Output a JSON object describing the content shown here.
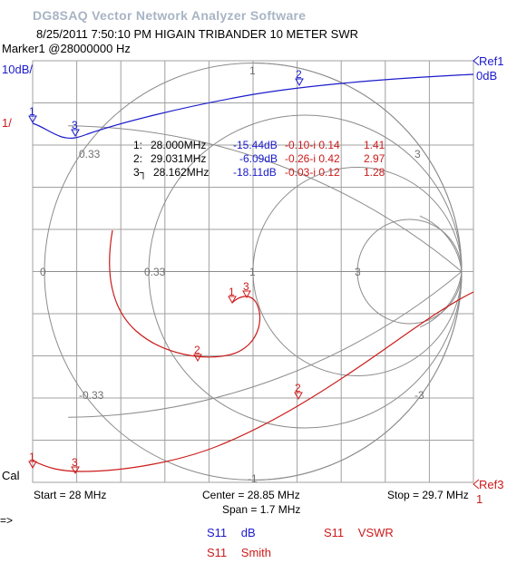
{
  "app_title": "DG8SAQ Vector Network Analyzer Software",
  "subtitle": "8/25/2011   7:50:10 PM   HIGAIN TRIBANDER 10 METER SWR",
  "marker_header": "Marker1 @28000000 Hz",
  "left_axis": {
    "top_label": "10dB/",
    "mid_label": "1/",
    "bottom_label": "Cal"
  },
  "right_axis": {
    "ref1": "Ref1",
    "ref1_value": "0dB",
    "ref3": "Ref3",
    "ref3_value": "1"
  },
  "footer": {
    "start": "Start = 28 MHz",
    "center": "Center = 28.85 MHz",
    "span": "Span = 1.7 MHz",
    "stop": "Stop = 29.7 MHz",
    "prompt": "=>"
  },
  "marker_table": [
    {
      "id": "1:",
      "freq": "28.000MHz",
      "db": "-15.44dB",
      "impedance": "-0.10-i 0.14",
      "vswr": "1.41"
    },
    {
      "id": "2:",
      "freq": "29.031MHz",
      "db": "-6.09dB",
      "impedance": "-0.26-i 0.42",
      "vswr": "2.97"
    },
    {
      "id": "3┐",
      "freq": "28.162MHz",
      "db": "-18.11dB",
      "impedance": "-0.03-i 0.12",
      "vswr": "1.28"
    }
  ],
  "smith_labels": {
    "r0": "0",
    "r033": "0.33",
    "r1": "1",
    "r3": "3",
    "x_top_1": "1",
    "x_top_033": "0.33",
    "x_top_3": "3",
    "x_bot_1": "-1",
    "x_bot_033": "-0.33",
    "x_bot_3": "-3"
  },
  "trace_markers": {
    "m1": "1",
    "m2": "2",
    "m3": "3"
  },
  "legend": [
    {
      "trace": "S11",
      "format": "dB",
      "color": "#1a1acc"
    },
    {
      "trace": "S11",
      "format": "VSWR",
      "color": "#cc1a1a"
    },
    {
      "trace": "S11",
      "format": "Smith",
      "color": "#cc1a1a"
    }
  ],
  "colors": {
    "grid": "#a0a0a0",
    "smith": "#909090",
    "trace_db": "#1a1acc",
    "trace_smith": "#cc1a1a",
    "marker_text": "#1a1acc"
  }
}
